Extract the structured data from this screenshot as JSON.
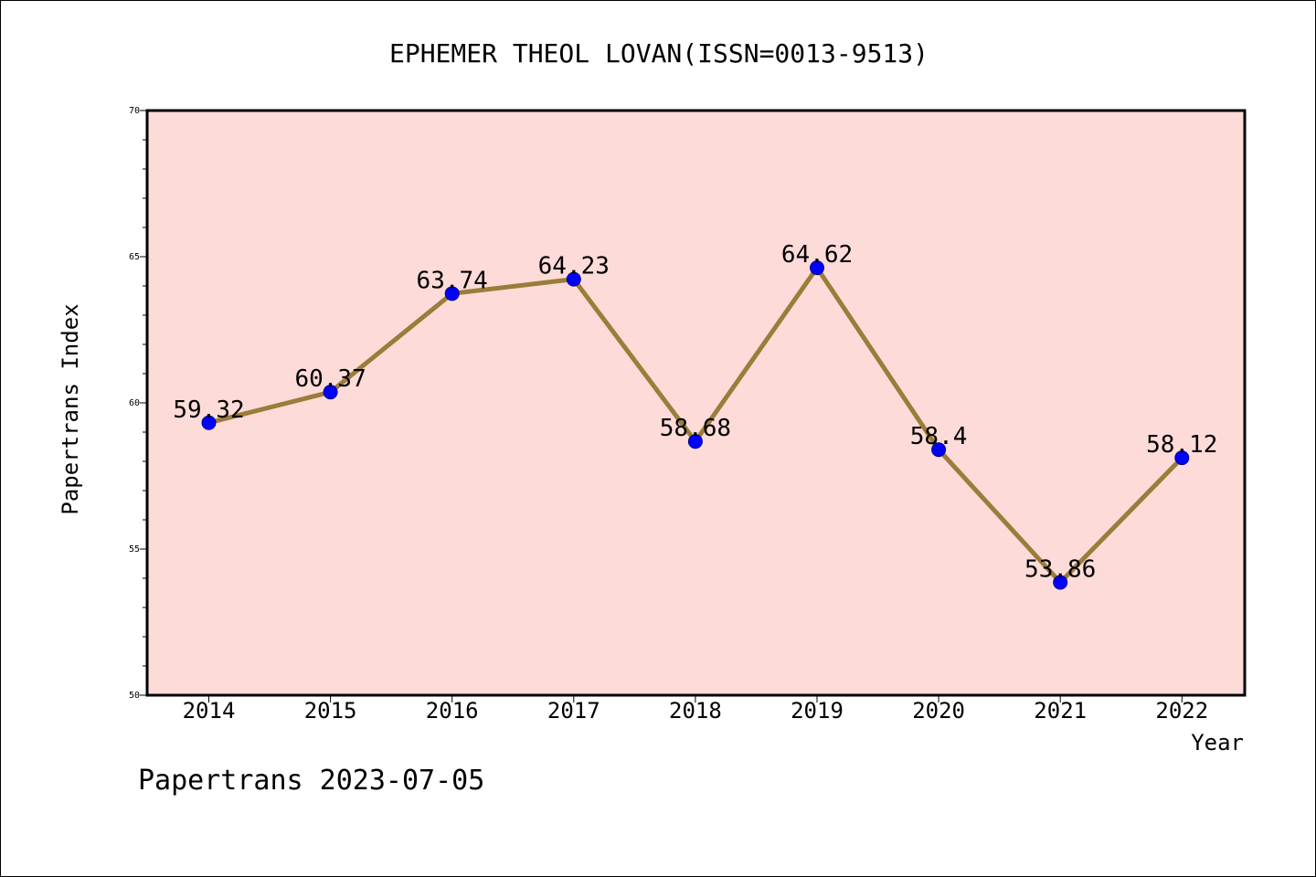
{
  "chart_data": {
    "type": "line",
    "title": "EPHEMER THEOL LOVAN(ISSN=0013-9513)",
    "xlabel": "Year",
    "ylabel": "Papertrans Index",
    "categories": [
      "2014",
      "2015",
      "2016",
      "2017",
      "2018",
      "2019",
      "2020",
      "2021",
      "2022"
    ],
    "series": [
      {
        "values": [
          59.32,
          60.37,
          63.74,
          64.23,
          58.68,
          64.62,
          58.4,
          53.86,
          58.12
        ],
        "labels": [
          "59.32",
          "60.37",
          "63.74",
          "64.23",
          "58.68",
          "64.62",
          "58.4",
          "53.86",
          "58.12"
        ],
        "line_color": "#9a7d3a",
        "marker_color": "#0000ff"
      }
    ],
    "ylim": [
      50,
      70
    ],
    "yticks": [
      "50",
      "55",
      "60",
      "65",
      "70"
    ],
    "plot_background": "#fddbd8",
    "grid": false,
    "legend": "none"
  },
  "footer": {
    "text": "Papertrans 2023-07-05"
  }
}
